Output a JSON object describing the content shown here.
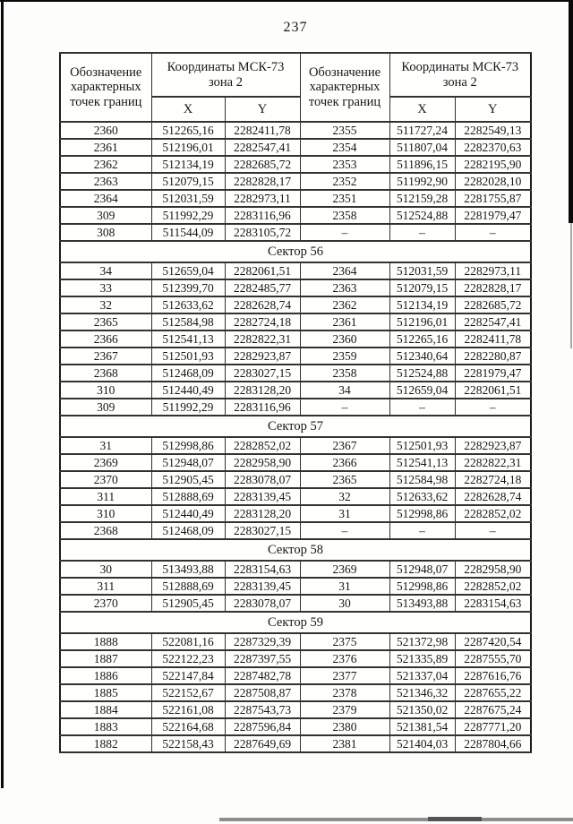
{
  "page_number": "237",
  "table": {
    "header": {
      "designation": "Обозначение характерных точек границ",
      "coords": "Координаты МСК-73 зона 2",
      "x_label": "X",
      "y_label": "Y"
    },
    "sections": [
      {
        "title": null,
        "rows": [
          [
            "2360",
            "512265,16",
            "2282411,78",
            "2355",
            "511727,24",
            "2282549,13"
          ],
          [
            "2361",
            "512196,01",
            "2282547,41",
            "2354",
            "511807,04",
            "2282370,63"
          ],
          [
            "2362",
            "512134,19",
            "2282685,72",
            "2353",
            "511896,15",
            "2282195,90"
          ],
          [
            "2363",
            "512079,15",
            "2282828,17",
            "2352",
            "511992,90",
            "2282028,10"
          ],
          [
            "2364",
            "512031,59",
            "2282973,11",
            "2351",
            "512159,28",
            "2281755,87"
          ],
          [
            "309",
            "511992,29",
            "2283116,96",
            "2358",
            "512524,88",
            "2281979,47"
          ],
          [
            "308",
            "511544,09",
            "2283105,72",
            "–",
            "–",
            "–"
          ]
        ]
      },
      {
        "title": "Сектор 56",
        "rows": [
          [
            "34",
            "512659,04",
            "2282061,51",
            "2364",
            "512031,59",
            "2282973,11"
          ],
          [
            "33",
            "512399,70",
            "2282485,77",
            "2363",
            "512079,15",
            "2282828,17"
          ],
          [
            "32",
            "512633,62",
            "2282628,74",
            "2362",
            "512134,19",
            "2282685,72"
          ],
          [
            "2365",
            "512584,98",
            "2282724,18",
            "2361",
            "512196,01",
            "2282547,41"
          ],
          [
            "2366",
            "512541,13",
            "2282822,31",
            "2360",
            "512265,16",
            "2282411,78"
          ],
          [
            "2367",
            "512501,93",
            "2282923,87",
            "2359",
            "512340,64",
            "2282280,87"
          ],
          [
            "2368",
            "512468,09",
            "2283027,15",
            "2358",
            "512524,88",
            "2281979,47"
          ],
          [
            "310",
            "512440,49",
            "2283128,20",
            "34",
            "512659,04",
            "2282061,51"
          ],
          [
            "309",
            "511992,29",
            "2283116,96",
            "–",
            "–",
            "–"
          ]
        ]
      },
      {
        "title": "Сектор 57",
        "rows": [
          [
            "31",
            "512998,86",
            "2282852,02",
            "2367",
            "512501,93",
            "2282923,87"
          ],
          [
            "2369",
            "512948,07",
            "2282958,90",
            "2366",
            "512541,13",
            "2282822,31"
          ],
          [
            "2370",
            "512905,45",
            "2283078,07",
            "2365",
            "512584,98",
            "2282724,18"
          ],
          [
            "311",
            "512888,69",
            "2283139,45",
            "32",
            "512633,62",
            "2282628,74"
          ],
          [
            "310",
            "512440,49",
            "2283128,20",
            "31",
            "512998,86",
            "2282852,02"
          ],
          [
            "2368",
            "512468,09",
            "2283027,15",
            "–",
            "–",
            "–"
          ]
        ]
      },
      {
        "title": "Сектор 58",
        "rows": [
          [
            "30",
            "513493,88",
            "2283154,63",
            "2369",
            "512948,07",
            "2282958,90"
          ],
          [
            "311",
            "512888,69",
            "2283139,45",
            "31",
            "512998,86",
            "2282852,02"
          ],
          [
            "2370",
            "512905,45",
            "2283078,07",
            "30",
            "513493,88",
            "2283154,63"
          ]
        ]
      },
      {
        "title": "Сектор 59",
        "rows": [
          [
            "1888",
            "522081,16",
            "2287329,39",
            "2375",
            "521372,98",
            "2287420,54"
          ],
          [
            "1887",
            "522122,23",
            "2287397,55",
            "2376",
            "521335,89",
            "2287555,70"
          ],
          [
            "1886",
            "522147,84",
            "2287482,78",
            "2377",
            "521337,04",
            "2287616,76"
          ],
          [
            "1885",
            "522152,67",
            "2287508,87",
            "2378",
            "521346,32",
            "2287655,22"
          ],
          [
            "1884",
            "522161,08",
            "2287543,73",
            "2379",
            "521350,02",
            "2287675,24"
          ],
          [
            "1883",
            "522164,68",
            "2287596,84",
            "2380",
            "521381,54",
            "2287771,20"
          ],
          [
            "1882",
            "522158,43",
            "2287649,69",
            "2381",
            "521404,03",
            "2287804,66"
          ]
        ]
      }
    ]
  }
}
